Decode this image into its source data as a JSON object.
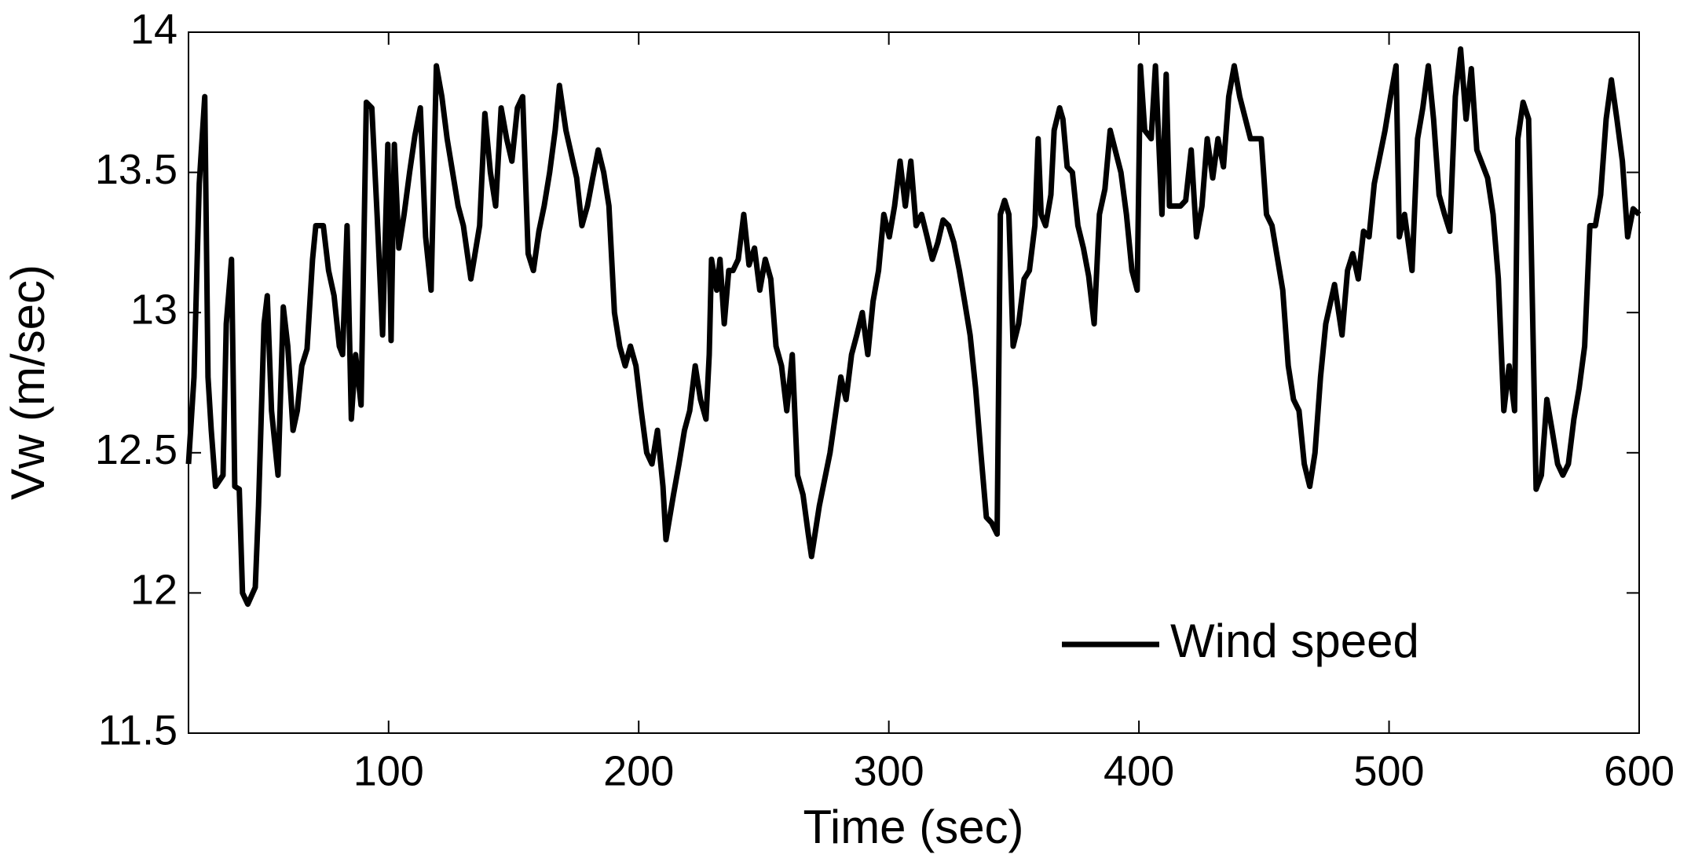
{
  "chart_data": {
    "type": "line",
    "xlabel": "Time (sec)",
    "ylabel": "Vw (m/sec)",
    "xlim": [
      20,
      600
    ],
    "ylim": [
      11.5,
      14
    ],
    "xticks": [
      100,
      200,
      300,
      400,
      500,
      600
    ],
    "yticks": [
      11.5,
      12,
      12.5,
      13,
      13.5,
      14
    ],
    "legend": "lower right",
    "grid": false,
    "x": [
      20,
      22.2,
      24.3,
      26.5,
      27.8,
      29.1,
      30.8,
      33.8,
      35.1,
      37.2,
      38.5,
      40.3,
      41.6,
      43.7,
      46.7,
      48.0,
      50.2,
      51.5,
      53.2,
      55.8,
      57.9,
      59.7,
      61.8,
      63.5,
      65.3,
      67.4,
      69.6,
      70.9,
      73.9,
      76.0,
      78.2,
      80.3,
      81.6,
      83.4,
      85.1,
      86.8,
      89.0,
      91.1,
      93.3,
      95.4,
      97.6,
      99.7,
      101.0,
      102.3,
      104.1,
      106.2,
      108.4,
      110.5,
      112.7,
      114.8,
      117.0,
      119.1,
      121.3,
      123.4,
      125.6,
      127.8,
      129.9,
      132.9,
      136.4,
      138.5,
      140.7,
      142.8,
      145.0,
      147.2,
      149.3,
      151.5,
      153.6,
      155.8,
      157.9,
      160.1,
      162.2,
      164.4,
      166.6,
      168.3,
      170.9,
      175.2,
      177.3,
      179.5,
      181.6,
      183.8,
      186.0,
      188.1,
      190.3,
      192.4,
      194.6,
      196.7,
      198.9,
      201.0,
      203.2,
      205.3,
      207.5,
      209.7,
      210.9,
      213.9,
      216.1,
      218.3,
      220.4,
      222.6,
      224.7,
      226.9,
      228.2,
      229.1,
      231.2,
      232.5,
      234.2,
      236.0,
      237.7,
      239.8,
      242.0,
      244.1,
      246.3,
      248.4,
      250.6,
      252.8,
      254.9,
      257.1,
      259.2,
      261.4,
      263.5,
      265.7,
      267.8,
      269.1,
      272.2,
      276.5,
      280.8,
      282.9,
      285.1,
      287.2,
      289.4,
      291.6,
      293.7,
      295.9,
      298.0,
      300.2,
      302.3,
      304.5,
      306.6,
      308.8,
      310.9,
      313.1,
      315.3,
      317.4,
      319.6,
      321.7,
      323.9,
      326.0,
      328.2,
      330.3,
      332.5,
      334.7,
      336.8,
      339.0,
      341.1,
      343.3,
      344.6,
      346.3,
      348.0,
      349.7,
      351.9,
      354.1,
      356.2,
      358.4,
      359.7,
      360.9,
      362.7,
      364.8,
      366.1,
      368.3,
      369.6,
      371.3,
      373.4,
      375.6,
      377.8,
      379.9,
      382.1,
      384.2,
      386.4,
      388.5,
      392.8,
      395.0,
      397.2,
      399.3,
      400.6,
      402.3,
      404.9,
      406.6,
      409.2,
      410.9,
      412.2,
      416.6,
      418.7,
      420.9,
      423.0,
      425.2,
      427.3,
      429.5,
      431.6,
      433.8,
      435.9,
      438.1,
      440.3,
      444.6,
      448.9,
      451.0,
      453.2,
      457.5,
      459.7,
      461.8,
      464.0,
      466.1,
      468.3,
      470.4,
      472.6,
      474.7,
      478.2,
      481.2,
      483.4,
      485.5,
      487.7,
      489.8,
      492.0,
      494.1,
      498.4,
      500.6,
      502.8,
      504.1,
      506.2,
      509.2,
      511.4,
      513.5,
      515.7,
      517.8,
      520.0,
      522.2,
      524.3,
      526.5,
      528.6,
      530.8,
      532.9,
      535.1,
      539.4,
      541.6,
      543.7,
      545.9,
      548.0,
      550.2,
      551.5,
      553.6,
      555.8,
      556.6,
      558.8,
      560.9,
      563.1,
      565.2,
      567.4,
      569.5,
      571.7,
      573.9,
      576.0,
      578.2,
      580.3,
      582.5,
      584.6,
      586.8,
      588.9,
      591.1,
      593.3,
      595.4,
      597.6,
      600
    ],
    "series": [
      {
        "name": "Wind speed",
        "color": "#000000",
        "values": [
          12.46,
          12.77,
          13.46,
          13.77,
          12.77,
          12.58,
          12.38,
          12.42,
          12.96,
          13.19,
          12.38,
          12.37,
          12.0,
          11.96,
          12.02,
          12.31,
          12.96,
          13.06,
          12.65,
          12.42,
          13.02,
          12.88,
          12.58,
          12.65,
          12.81,
          12.87,
          13.19,
          13.31,
          13.31,
          13.15,
          13.06,
          12.88,
          12.85,
          13.31,
          12.62,
          12.85,
          12.67,
          13.75,
          13.73,
          13.35,
          12.92,
          13.6,
          12.9,
          13.6,
          13.23,
          13.35,
          13.5,
          13.63,
          13.73,
          13.27,
          13.08,
          13.88,
          13.77,
          13.62,
          13.5,
          13.38,
          13.31,
          13.12,
          13.31,
          13.71,
          13.5,
          13.38,
          13.73,
          13.62,
          13.54,
          13.73,
          13.77,
          13.21,
          13.15,
          13.29,
          13.38,
          13.5,
          13.65,
          13.81,
          13.65,
          13.48,
          13.31,
          13.38,
          13.48,
          13.58,
          13.5,
          13.38,
          13.0,
          12.88,
          12.81,
          12.88,
          12.81,
          12.65,
          12.5,
          12.46,
          12.58,
          12.38,
          12.19,
          12.35,
          12.46,
          12.58,
          12.65,
          12.81,
          12.69,
          12.62,
          12.85,
          13.19,
          13.08,
          13.19,
          12.96,
          13.15,
          13.15,
          13.19,
          13.35,
          13.17,
          13.23,
          13.08,
          13.19,
          13.12,
          12.88,
          12.81,
          12.65,
          12.85,
          12.42,
          12.35,
          12.21,
          12.13,
          12.31,
          12.5,
          12.77,
          12.69,
          12.85,
          12.92,
          13.0,
          12.85,
          13.04,
          13.15,
          13.35,
          13.27,
          13.38,
          13.54,
          13.38,
          13.54,
          13.31,
          13.35,
          13.27,
          13.19,
          13.25,
          13.33,
          13.31,
          13.25,
          13.15,
          13.04,
          12.92,
          12.73,
          12.5,
          12.27,
          12.25,
          12.21,
          13.35,
          13.4,
          13.35,
          12.88,
          12.96,
          13.12,
          13.15,
          13.31,
          13.62,
          13.35,
          13.31,
          13.42,
          13.65,
          13.73,
          13.69,
          13.52,
          13.5,
          13.31,
          13.23,
          13.13,
          12.96,
          13.35,
          13.44,
          13.65,
          13.5,
          13.35,
          13.15,
          13.08,
          13.88,
          13.65,
          13.62,
          13.88,
          13.35,
          13.85,
          13.38,
          13.38,
          13.4,
          13.58,
          13.27,
          13.38,
          13.62,
          13.48,
          13.62,
          13.52,
          13.77,
          13.88,
          13.77,
          13.62,
          13.62,
          13.35,
          13.31,
          13.08,
          12.81,
          12.69,
          12.65,
          12.46,
          12.38,
          12.5,
          12.77,
          12.96,
          13.1,
          12.92,
          13.15,
          13.21,
          13.12,
          13.29,
          13.27,
          13.46,
          13.65,
          13.77,
          13.88,
          13.27,
          13.35,
          13.15,
          13.62,
          13.73,
          13.88,
          13.69,
          13.42,
          13.35,
          13.29,
          13.77,
          13.94,
          13.69,
          13.87,
          13.58,
          13.48,
          13.35,
          13.12,
          12.65,
          12.81,
          12.65,
          13.62,
          13.75,
          13.69,
          13.35,
          12.37,
          12.42,
          12.69,
          12.58,
          12.46,
          12.42,
          12.46,
          12.62,
          12.73,
          12.88,
          13.31,
          13.31,
          13.42,
          13.69,
          13.83,
          13.69,
          13.54,
          13.27,
          13.37,
          13.35
        ]
      }
    ]
  }
}
